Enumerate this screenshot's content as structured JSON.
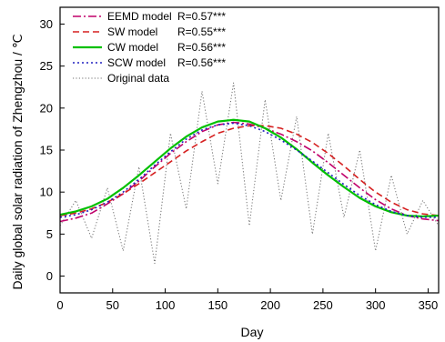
{
  "chart_data": {
    "type": "line",
    "title": "",
    "xlabel": "Day",
    "ylabel": "Daily global solar radiation of Zhengzhou / ℃",
    "xlim": [
      0,
      360
    ],
    "ylim": [
      -2,
      32
    ],
    "xticks": [
      0,
      50,
      100,
      150,
      200,
      250,
      300,
      350
    ],
    "yticks": [
      0,
      5,
      10,
      15,
      20,
      25,
      30
    ],
    "grid": false,
    "legend_position": "top-left",
    "x": [
      0,
      15,
      30,
      45,
      60,
      75,
      90,
      105,
      120,
      135,
      150,
      165,
      180,
      195,
      210,
      225,
      240,
      255,
      270,
      285,
      300,
      315,
      330,
      345,
      360
    ],
    "series": [
      {
        "name": "EEMD model",
        "label": "R=0.57***",
        "color": "#c0006a",
        "style": "dashdot",
        "values": [
          6.5,
          6.9,
          7.5,
          8.6,
          9.8,
          11.3,
          13.0,
          14.6,
          16.0,
          17.2,
          18.0,
          18.3,
          18.1,
          17.6,
          16.9,
          16.0,
          14.9,
          13.5,
          12.0,
          10.5,
          9.1,
          8.0,
          7.2,
          6.8,
          6.6
        ]
      },
      {
        "name": "SW model",
        "label": "R=0.55***",
        "color": "#d62020",
        "style": "dashed",
        "values": [
          7.2,
          7.5,
          8.0,
          8.8,
          9.8,
          11.0,
          12.3,
          13.6,
          14.9,
          16.0,
          17.0,
          17.6,
          17.9,
          17.9,
          17.6,
          16.9,
          15.9,
          14.6,
          13.1,
          11.5,
          10.0,
          8.8,
          7.9,
          7.4,
          7.2
        ]
      },
      {
        "name": "CW model",
        "label": "R=0.56***",
        "color": "#00c000",
        "style": "solid",
        "values": [
          7.3,
          7.7,
          8.3,
          9.2,
          10.5,
          12.0,
          13.6,
          15.2,
          16.6,
          17.7,
          18.4,
          18.6,
          18.4,
          17.6,
          16.5,
          15.1,
          13.5,
          12.0,
          10.6,
          9.3,
          8.3,
          7.6,
          7.2,
          7.1,
          7.2
        ]
      },
      {
        "name": "SCW model",
        "label": "R=0.56***",
        "color": "#2020c0",
        "style": "dotted",
        "values": [
          7.0,
          7.3,
          7.9,
          8.8,
          10.0,
          11.5,
          13.2,
          14.8,
          16.3,
          17.4,
          18.0,
          18.2,
          17.9,
          17.2,
          16.2,
          15.0,
          13.7,
          12.3,
          10.9,
          9.6,
          8.5,
          7.7,
          7.2,
          7.0,
          7.0
        ]
      },
      {
        "name": "Original data",
        "label": "",
        "color": "#707070",
        "style": "dotted-thin",
        "values": [
          6.0,
          9.0,
          4.5,
          10.5,
          3.0,
          13.0,
          1.5,
          17.0,
          8.0,
          22.0,
          11.0,
          23.0,
          6.0,
          21.0,
          9.0,
          19.0,
          5.0,
          17.0,
          7.0,
          15.0,
          3.0,
          12.0,
          5.0,
          9.0,
          6.0
        ]
      }
    ]
  }
}
